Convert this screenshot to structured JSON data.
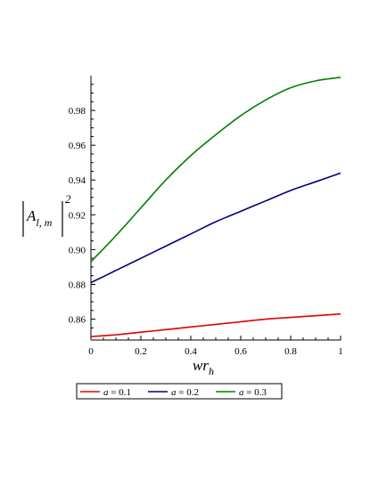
{
  "chart_data": {
    "type": "line",
    "xlabel": "wr",
    "xlabel_sub": "h",
    "ylabel": "A",
    "ylabel_sub": "l, m",
    "ylabel_exp": "2",
    "xlim": [
      0,
      1
    ],
    "ylim": [
      0.848,
      1.0
    ],
    "xticks": [
      0,
      0.2,
      0.4,
      0.6,
      0.8,
      1
    ],
    "xtick_labels": [
      "0",
      "0.2",
      "0.4",
      "0.6",
      "0.8",
      "1"
    ],
    "yticks": [
      0.86,
      0.88,
      0.9,
      0.92,
      0.94,
      0.96,
      0.98
    ],
    "ytick_labels": [
      "0.86",
      "0.88",
      "0.90",
      "0.92",
      "0.94",
      "0.96",
      "0.98"
    ],
    "grid": false,
    "legend_position": "bottom",
    "x": [
      0,
      0.1,
      0.2,
      0.3,
      0.4,
      0.5,
      0.6,
      0.7,
      0.8,
      0.9,
      1.0
    ],
    "series": [
      {
        "name_prefix": "a",
        "name_value": "0.1",
        "color": "#e00000",
        "values": [
          0.85,
          0.851,
          0.8525,
          0.854,
          0.8555,
          0.857,
          0.8585,
          0.86,
          0.861,
          0.862,
          0.863
        ]
      },
      {
        "name_prefix": "a",
        "name_value": "0.2",
        "color": "#00007f",
        "values": [
          0.881,
          0.888,
          0.895,
          0.902,
          0.909,
          0.916,
          0.922,
          0.928,
          0.934,
          0.939,
          0.944
        ]
      },
      {
        "name_prefix": "a",
        "name_value": "0.3",
        "color": "#008000",
        "values": [
          0.893,
          0.908,
          0.924,
          0.94,
          0.954,
          0.966,
          0.977,
          0.986,
          0.993,
          0.997,
          0.999
        ]
      }
    ]
  }
}
